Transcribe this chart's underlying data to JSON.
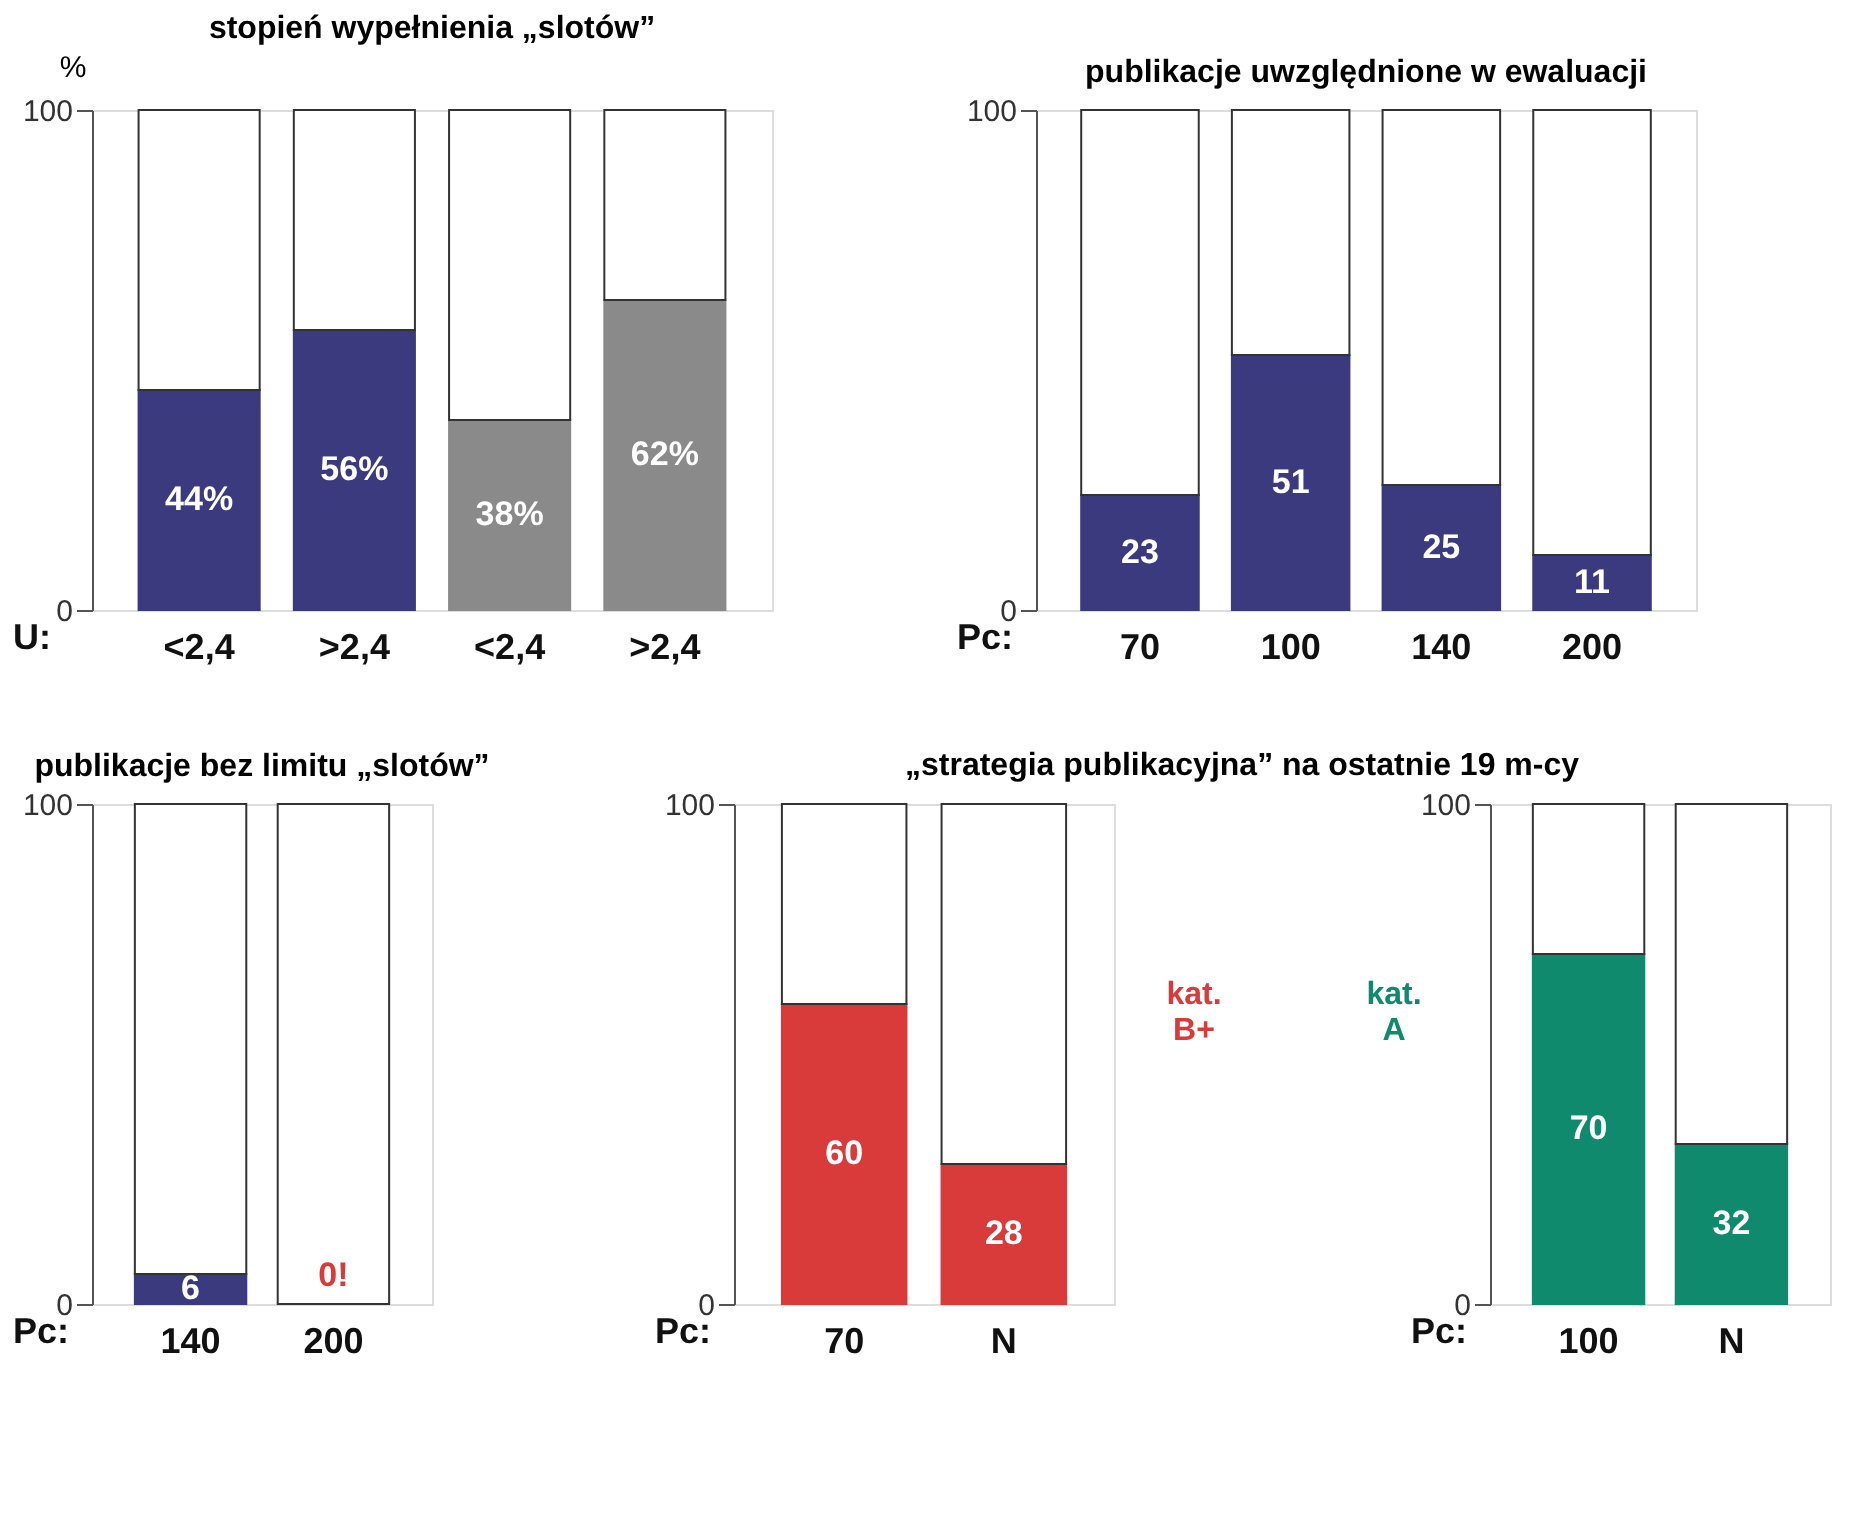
{
  "chart_data": [
    {
      "type": "bar",
      "title": "stopień wypełnienia „slotów”",
      "ylabel": "%",
      "xlabel": "U:",
      "categories": [
        "<2,4",
        ">2,4",
        "<2,4",
        ">2,4"
      ],
      "stacked": true,
      "ylim": [
        0,
        100
      ],
      "yticks": [
        0,
        100
      ],
      "series": [
        {
          "colors": [
            "#3b3a7e",
            "#3b3a7e",
            "#8a8a8a",
            "#8a8a8a"
          ],
          "values": [
            44,
            56,
            38,
            62
          ],
          "value_labels": [
            "44%",
            "56%",
            "38%",
            "62%"
          ]
        },
        {
          "color": "#ffffff",
          "values": [
            56,
            44,
            62,
            38
          ]
        }
      ]
    },
    {
      "type": "bar",
      "title": "publikacje uwzględnione w ewaluacji",
      "xlabel": "Pc:",
      "categories": [
        "70",
        "100",
        "140",
        "200"
      ],
      "stacked": true,
      "ylim": [
        0,
        100
      ],
      "yticks": [
        0,
        100
      ],
      "series": [
        {
          "color": "#3b3a7e",
          "values": [
            23,
            51,
            25,
            11
          ],
          "value_labels": [
            "23",
            "51",
            "25",
            "11"
          ]
        },
        {
          "color": "#ffffff",
          "values": [
            77,
            49,
            75,
            89
          ]
        }
      ]
    },
    {
      "type": "bar",
      "title": "publikacje bez limitu „slotów”",
      "xlabel": "Pc:",
      "categories": [
        "140",
        "200"
      ],
      "stacked": true,
      "ylim": [
        0,
        100
      ],
      "yticks": [
        0,
        100
      ],
      "series": [
        {
          "colors": [
            "#3b3a7e",
            "#d93a3a"
          ],
          "values": [
            6,
            0
          ],
          "value_labels": [
            "6",
            "0!"
          ]
        },
        {
          "color": "#ffffff",
          "values": [
            94,
            100
          ]
        }
      ]
    },
    {
      "type": "bar",
      "title": "„strategia publikacyjna” na ostatnie 19 m-cy",
      "xlabel": "Pc:",
      "categories": [
        "70",
        "N"
      ],
      "stacked": true,
      "annotations": [
        "kat. B+"
      ],
      "ylim": [
        0,
        100
      ],
      "yticks": [
        0,
        100
      ],
      "series": [
        {
          "color": "#d93a3a",
          "values": [
            60,
            28
          ],
          "value_labels": [
            "60",
            "28"
          ]
        },
        {
          "color": "#ffffff",
          "values": [
            40,
            72
          ]
        }
      ]
    },
    {
      "type": "bar",
      "xlabel": "Pc:",
      "categories": [
        "100",
        "N"
      ],
      "stacked": true,
      "annotations": [
        "kat. A"
      ],
      "ylim": [
        0,
        100
      ],
      "yticks": [
        0,
        100
      ],
      "series": [
        {
          "color": "#0f8a6c",
          "values": [
            70,
            32
          ],
          "value_labels": [
            "70",
            "32"
          ]
        },
        {
          "color": "#ffffff",
          "values": [
            30,
            68
          ]
        }
      ]
    }
  ]
}
